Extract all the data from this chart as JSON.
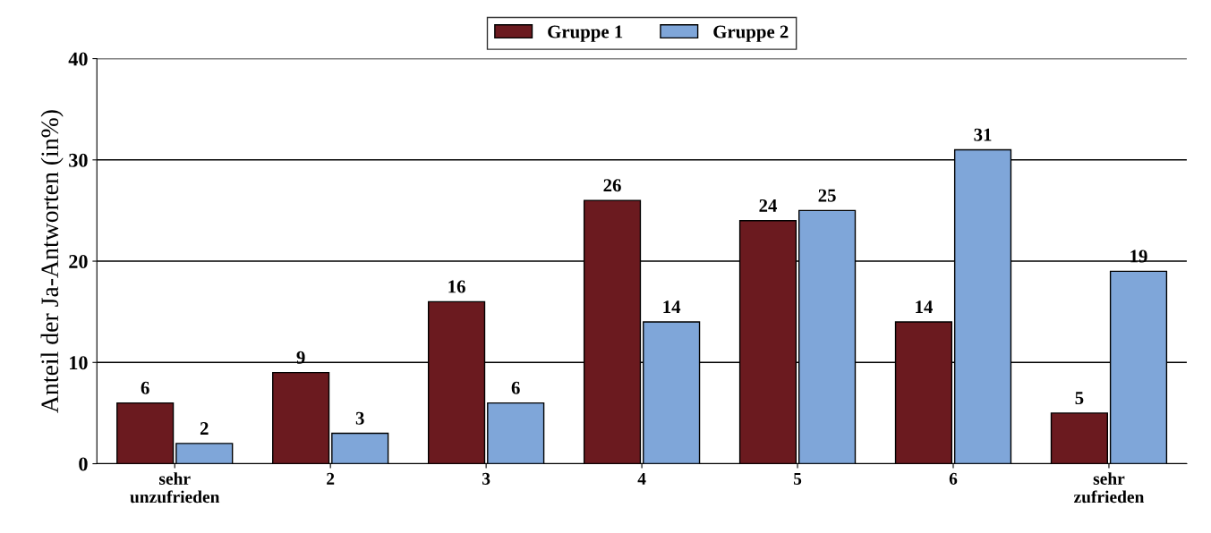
{
  "chart_data": {
    "type": "bar",
    "ylabel": "Anteil der Ja-Antworten (in%)",
    "categories": [
      "sehr\nunzufrieden",
      "2",
      "3",
      "4",
      "5",
      "6",
      "sehr\nzufrieden"
    ],
    "series": [
      {
        "name": "Gruppe 1",
        "color": "#6b1a1f",
        "values": [
          6,
          9,
          16,
          26,
          24,
          14,
          5
        ]
      },
      {
        "name": "Gruppe 2",
        "color": "#7fa6d9",
        "values": [
          2,
          3,
          6,
          14,
          25,
          31,
          19
        ]
      }
    ],
    "ylim": [
      0,
      40
    ],
    "yticks": [
      0,
      10,
      20,
      30,
      40
    ],
    "grid": "y",
    "legend": "top",
    "data_labels": true
  }
}
